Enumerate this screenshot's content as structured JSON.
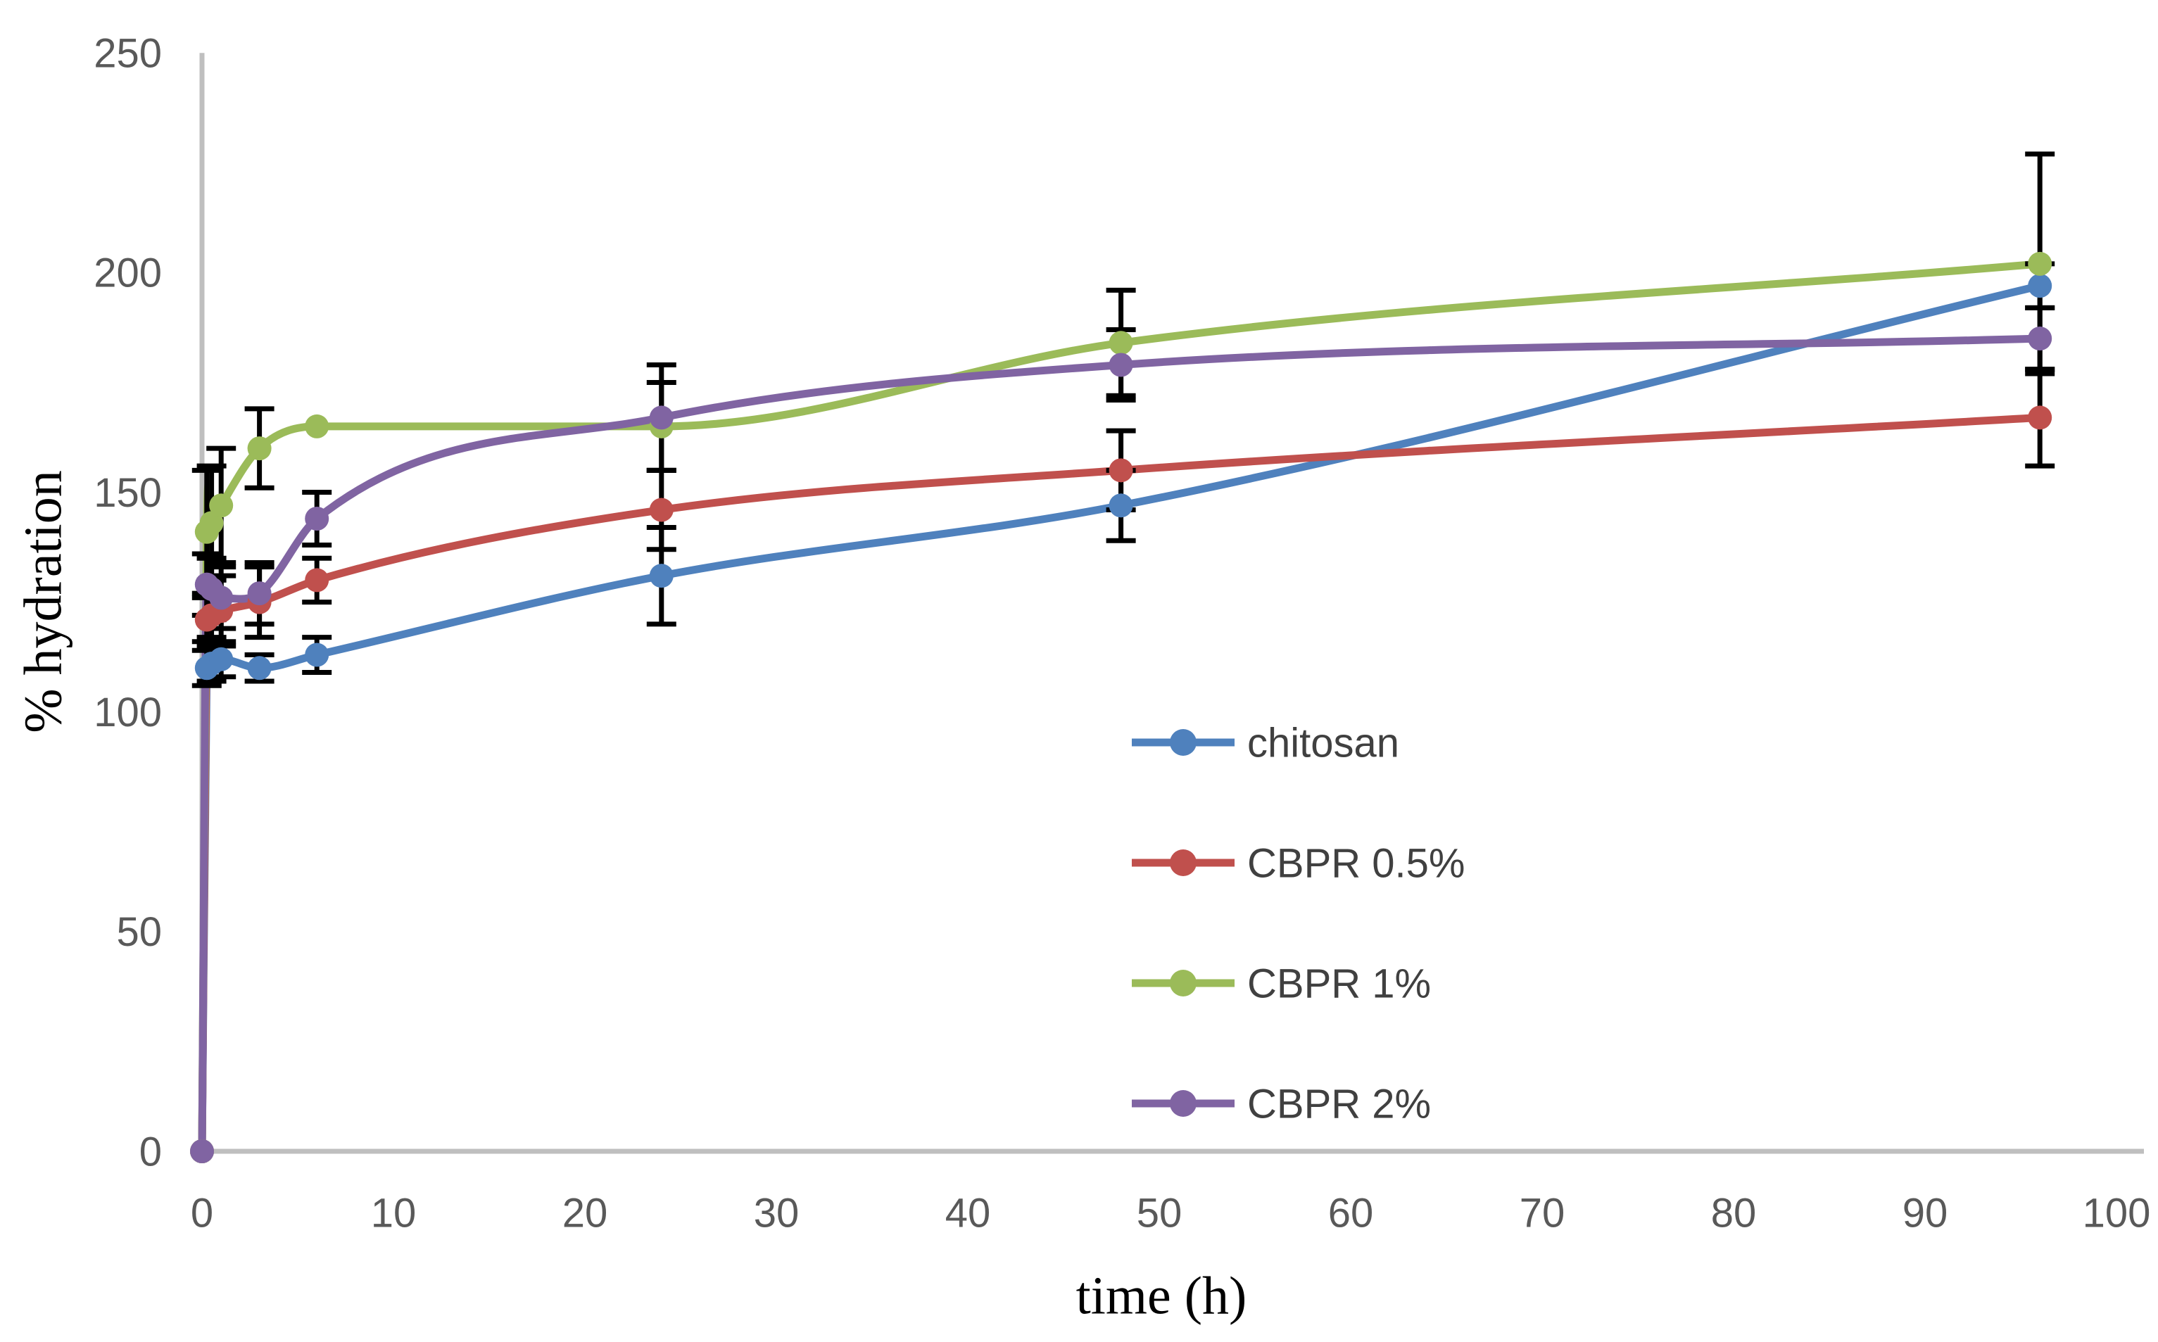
{
  "chart_data": {
    "type": "line",
    "title": "",
    "xlabel": "time (h)",
    "ylabel": "% hydration",
    "x_ticks": [
      0,
      10,
      20,
      30,
      40,
      50,
      60,
      70,
      80,
      90,
      100
    ],
    "y_ticks": [
      0,
      50,
      100,
      150,
      200,
      250
    ],
    "xlim": [
      0,
      101
    ],
    "ylim": [
      0,
      250
    ],
    "grid": "off",
    "legend_position": "center-right",
    "x": [
      0,
      0.25,
      0.5,
      1,
      3,
      6,
      24,
      48,
      96
    ],
    "series": [
      {
        "name": "chitosan",
        "color": "#4F81BD",
        "values": [
          0,
          110,
          111,
          112,
          110,
          113,
          131,
          147,
          197
        ],
        "errors": [
          0,
          4,
          4,
          4,
          3,
          4,
          11,
          8,
          5
        ]
      },
      {
        "name": "CBPR 0.5%",
        "color": "#C0504D",
        "values": [
          0,
          121,
          122,
          123,
          125,
          130,
          146,
          155,
          167
        ],
        "errors": [
          0,
          5,
          5,
          8,
          8,
          5,
          9,
          9,
          11
        ]
      },
      {
        "name": "CBPR 1%",
        "color": "#9BBB59",
        "values": [
          0,
          141,
          143,
          147,
          160,
          165,
          165,
          184,
          202
        ],
        "errors": [
          0,
          14,
          13,
          13,
          9,
          0,
          10,
          12,
          25
        ]
      },
      {
        "name": "CBPR 2%",
        "color": "#8064A2",
        "values": [
          0,
          129,
          128,
          126,
          127,
          144,
          167,
          179,
          185
        ],
        "errors": [
          0,
          7,
          7,
          7,
          7,
          6,
          12,
          8,
          7
        ]
      }
    ],
    "style": {
      "axis_color": "#BFBFBF",
      "tick_label_color": "#595959",
      "legend_text_color": "#404040",
      "error_bar_color": "#000000"
    }
  }
}
